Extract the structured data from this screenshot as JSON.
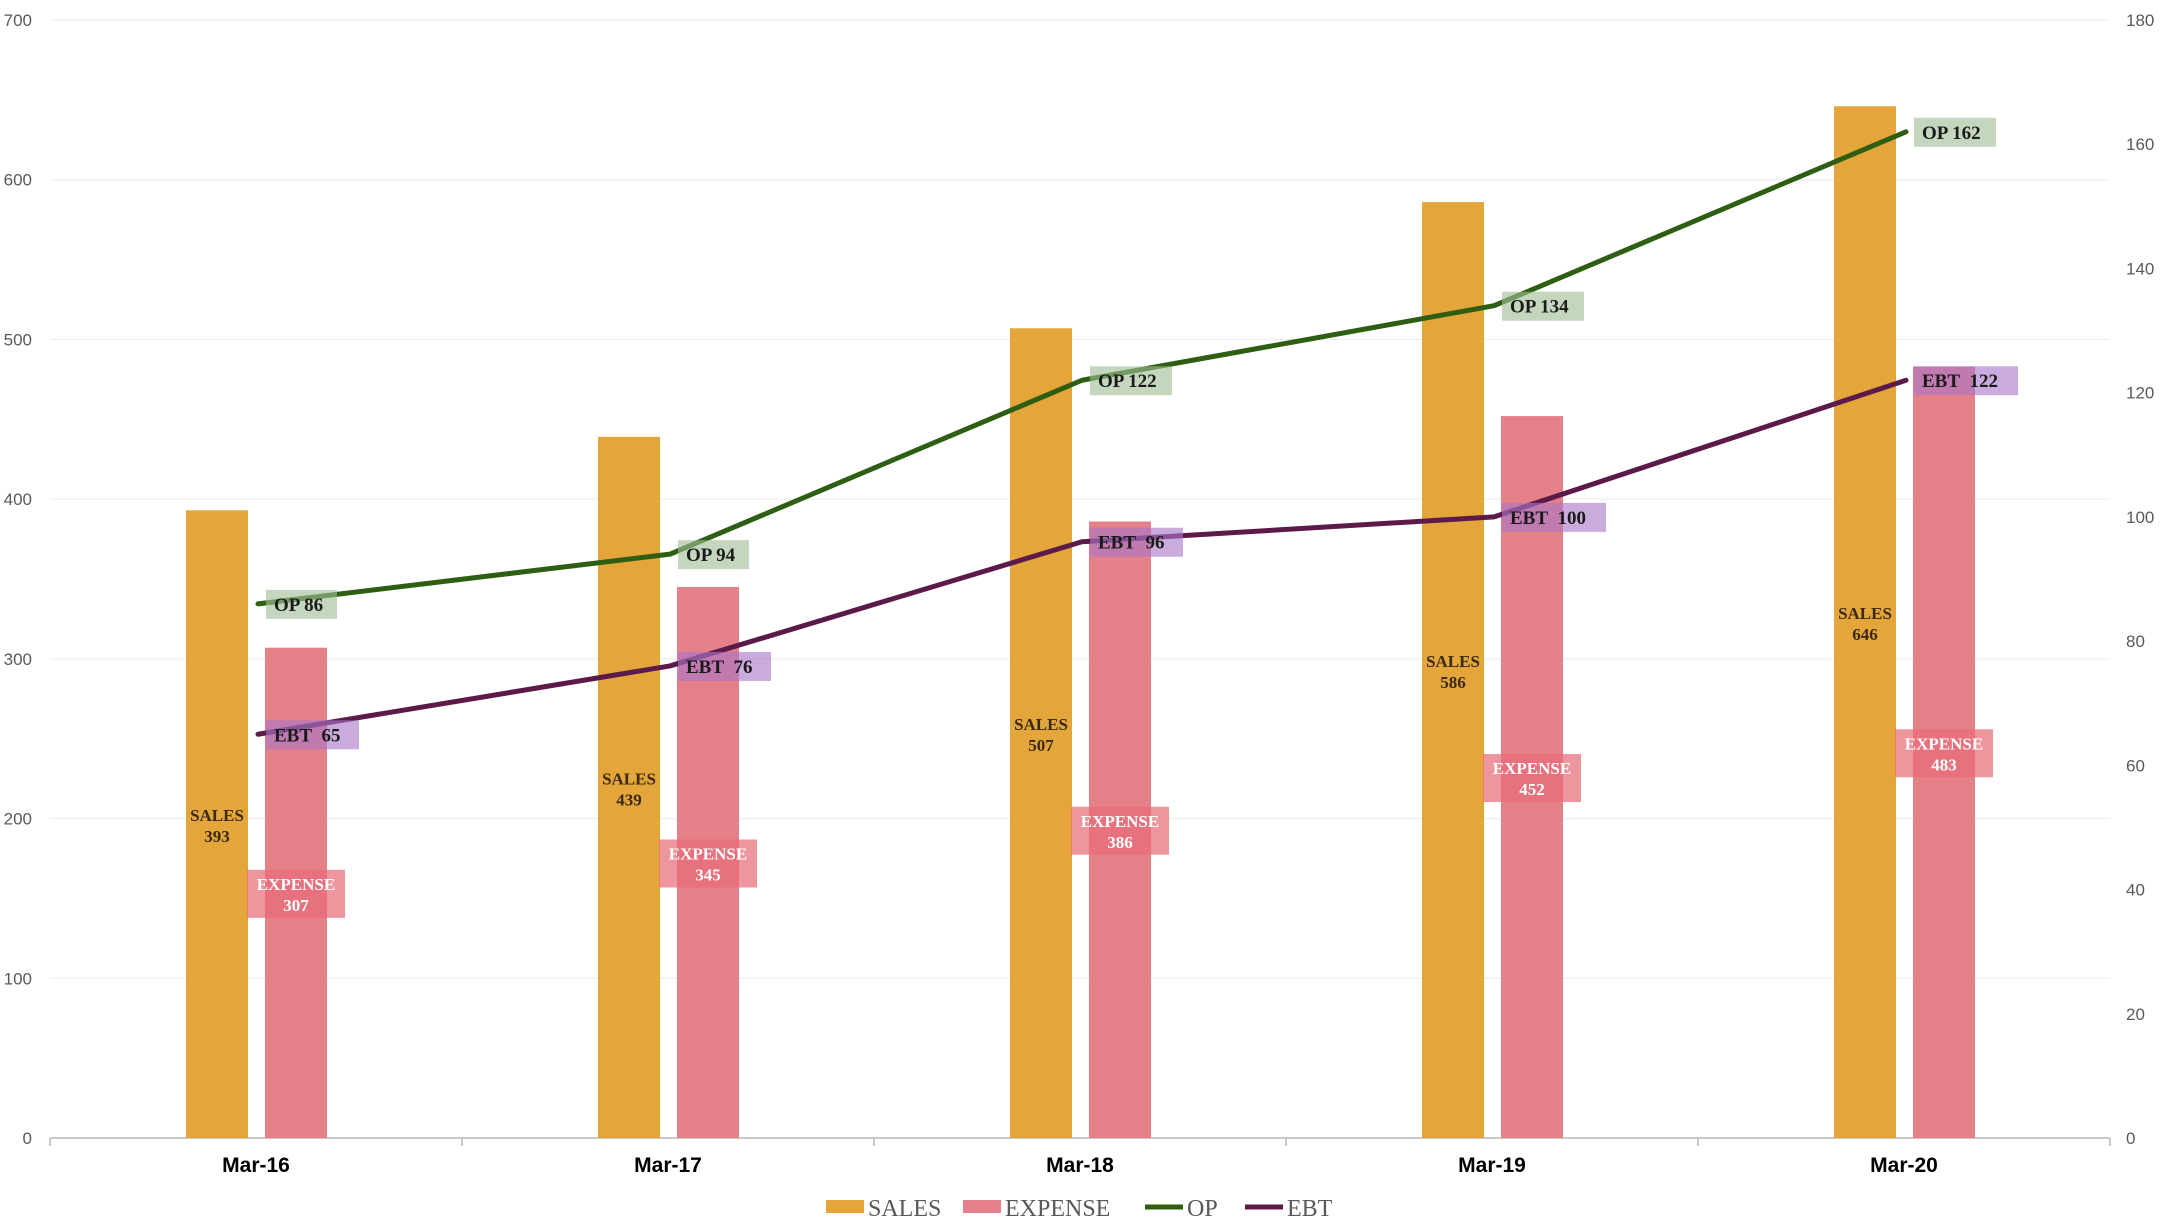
{
  "chart_data": {
    "type": "bar",
    "categories": [
      "Mar-16",
      "Mar-17",
      "Mar-18",
      "Mar-19",
      "Mar-20"
    ],
    "series": [
      {
        "name": "SALES",
        "type": "bar",
        "axis": "left",
        "values": [
          393,
          439,
          507,
          586,
          646
        ],
        "labels": [
          "SALES 393",
          "SALES 439",
          "SALES 507",
          "SALES 586",
          "SALES 646"
        ],
        "color": "#E4A53A"
      },
      {
        "name": "EXPENSE",
        "type": "bar",
        "axis": "left",
        "values": [
          307,
          345,
          386,
          452,
          483
        ],
        "labels": [
          "EXPENSE 307",
          "EXPENSE 345",
          "EXPENSE 386",
          "EXPENSE 452",
          "EXPENSE 483"
        ],
        "color": "#E57F88"
      },
      {
        "name": "OP",
        "type": "line",
        "axis": "right",
        "values": [
          86,
          94,
          122,
          134,
          162
        ],
        "labels": [
          "OP 86",
          "OP 94",
          "OP 122",
          "OP 134",
          "OP 162"
        ],
        "color": "#2E5E12"
      },
      {
        "name": "EBT",
        "type": "line",
        "axis": "right",
        "values": [
          65,
          76,
          96,
          100,
          122
        ],
        "labels": [
          "EBT 65",
          "EBT 76",
          "EBT 96",
          "EBT 100",
          "EBT 122"
        ],
        "color": "#5B1A4A"
      }
    ],
    "ylim": [
      0,
      700
    ],
    "y2lim": [
      0,
      180
    ],
    "yticks": [
      "0",
      "100",
      "200",
      "300",
      "400",
      "500",
      "600",
      "700"
    ],
    "y2ticks": [
      "0",
      "20",
      "40",
      "60",
      "80",
      "100",
      "120",
      "140",
      "160",
      "180"
    ],
    "legend": [
      "SALES",
      "EXPENSE",
      "OP",
      "EBT"
    ],
    "legend_position": "bottom",
    "grid": true
  }
}
